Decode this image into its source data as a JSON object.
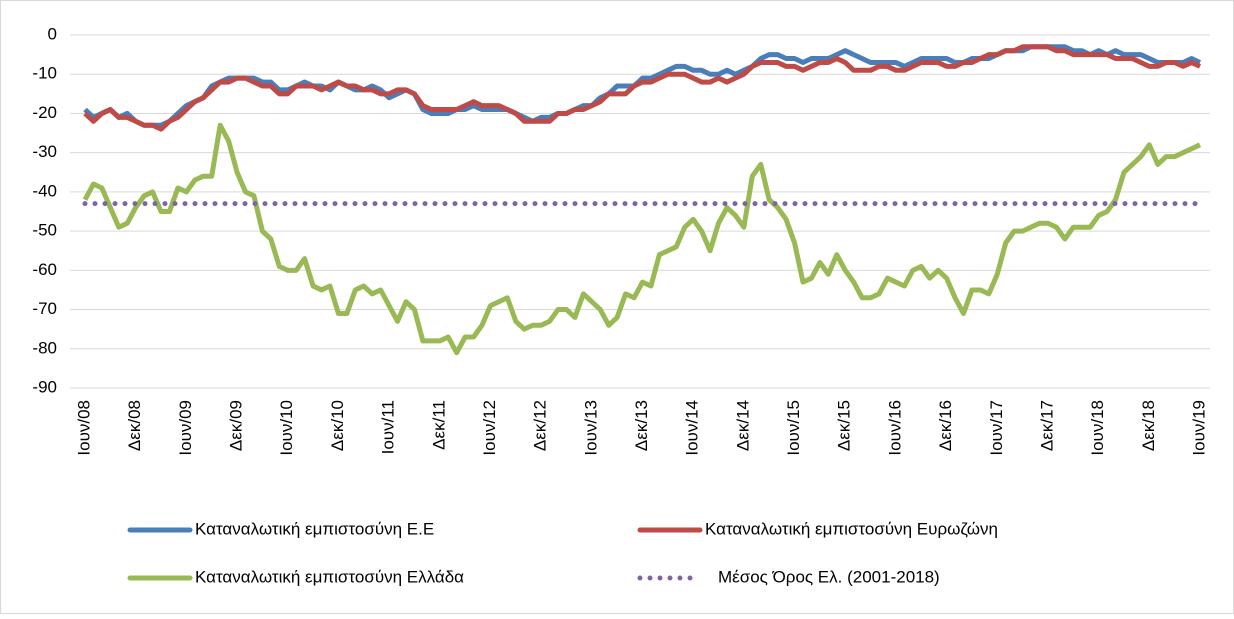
{
  "chart_data": {
    "type": "line",
    "categories": [
      "Ιουν/08",
      null,
      null,
      null,
      null,
      null,
      "Δεκ/08",
      null,
      null,
      null,
      null,
      null,
      "Ιουν/09",
      null,
      null,
      null,
      null,
      null,
      "Δεκ/09",
      null,
      null,
      null,
      null,
      null,
      "Ιουν/10",
      null,
      null,
      null,
      null,
      null,
      "Δεκ/10",
      null,
      null,
      null,
      null,
      null,
      "Ιουν/11",
      null,
      null,
      null,
      null,
      null,
      "Δεκ/11",
      null,
      null,
      null,
      null,
      null,
      "Ιουν/12",
      null,
      null,
      null,
      null,
      null,
      "Δεκ/12",
      null,
      null,
      null,
      null,
      null,
      "Ιουν/13",
      null,
      null,
      null,
      null,
      null,
      "Δεκ/13",
      null,
      null,
      null,
      null,
      null,
      "Ιουν/14",
      null,
      null,
      null,
      null,
      null,
      "Δεκ/14",
      null,
      null,
      null,
      null,
      null,
      "Ιουν/15",
      null,
      null,
      null,
      null,
      null,
      "Δεκ/15",
      null,
      null,
      null,
      null,
      null,
      "Ιουν/16",
      null,
      null,
      null,
      null,
      null,
      "Δεκ/16",
      null,
      null,
      null,
      null,
      null,
      "Ιουν/17",
      null,
      null,
      null,
      null,
      null,
      "Δεκ/17",
      null,
      null,
      null,
      null,
      null,
      "Ιουν/18",
      null,
      null,
      null,
      null,
      null,
      "Δεκ/18",
      null,
      null,
      null,
      null,
      null,
      "Ιουν/19"
    ],
    "series": [
      {
        "name": "Καταναλωτική εμπιστοσύνη Ε.Ε",
        "color": "#4a7ebb",
        "values": [
          -19,
          -21,
          -20,
          -19,
          -21,
          -20,
          -22,
          -23,
          -23,
          -23,
          -22,
          -20,
          -18,
          -17,
          -16,
          -13,
          -12,
          -11,
          -11,
          -11,
          -11,
          -12,
          -12,
          -14,
          -14,
          -13,
          -12,
          -13,
          -13,
          -14,
          -12,
          -13,
          -14,
          -14,
          -13,
          -14,
          -16,
          -15,
          -14,
          -15,
          -19,
          -20,
          -20,
          -20,
          -19,
          -19,
          -18,
          -19,
          -19,
          -19,
          -19,
          -20,
          -21,
          -22,
          -21,
          -21,
          -20,
          -20,
          -19,
          -18,
          -18,
          -16,
          -15,
          -13,
          -13,
          -13,
          -11,
          -11,
          -10,
          -9,
          -8,
          -8,
          -9,
          -9,
          -10,
          -10,
          -9,
          -10,
          -9,
          -8,
          -6,
          -5,
          -5,
          -6,
          -6,
          -7,
          -6,
          -6,
          -6,
          -5,
          -4,
          -5,
          -6,
          -7,
          -7,
          -7,
          -7,
          -8,
          -7,
          -6,
          -6,
          -6,
          -6,
          -7,
          -7,
          -6,
          -6,
          -6,
          -5,
          -4,
          -4,
          -4,
          -3,
          -3,
          -3,
          -3,
          -3,
          -4,
          -4,
          -5,
          -4,
          -5,
          -4,
          -5,
          -5,
          -5,
          -6,
          -7,
          -7,
          -7,
          -7,
          -6,
          -7
        ]
      },
      {
        "name": "Καταναλωτική εμπιστοσύνη Ευρωζώνη",
        "color": "#be4b48",
        "values": [
          -20,
          -22,
          -20,
          -19,
          -21,
          -21,
          -22,
          -23,
          -23,
          -24,
          -22,
          -21,
          -19,
          -17,
          -16,
          -14,
          -12,
          -12,
          -11,
          -11,
          -12,
          -13,
          -13,
          -15,
          -15,
          -13,
          -13,
          -13,
          -14,
          -13,
          -12,
          -13,
          -13,
          -14,
          -14,
          -15,
          -15,
          -14,
          -14,
          -15,
          -18,
          -19,
          -19,
          -19,
          -19,
          -18,
          -17,
          -18,
          -18,
          -18,
          -19,
          -20,
          -22,
          -22,
          -22,
          -22,
          -20,
          -20,
          -19,
          -19,
          -18,
          -17,
          -15,
          -15,
          -15,
          -13,
          -12,
          -12,
          -11,
          -10,
          -10,
          -10,
          -11,
          -12,
          -12,
          -11,
          -12,
          -11,
          -10,
          -8,
          -7,
          -7,
          -7,
          -8,
          -8,
          -9,
          -8,
          -7,
          -7,
          -6,
          -7,
          -9,
          -9,
          -9,
          -8,
          -8,
          -9,
          -9,
          -8,
          -7,
          -7,
          -7,
          -8,
          -8,
          -7,
          -7,
          -6,
          -5,
          -5,
          -4,
          -4,
          -3,
          -3,
          -3,
          -3,
          -4,
          -4,
          -5,
          -5,
          -5,
          -5,
          -5,
          -6,
          -6,
          -6,
          -7,
          -8,
          -8,
          -7,
          -7,
          -8,
          -7,
          -8
        ]
      },
      {
        "name": "Καταναλωτική εμπιστοσύνη Ελλάδα",
        "color": "#98b954",
        "values": [
          -42,
          -38,
          -39,
          -44,
          -49,
          -48,
          -44,
          -41,
          -40,
          -45,
          -45,
          -39,
          -40,
          -37,
          -36,
          -36,
          -23,
          -27,
          -35,
          -40,
          -41,
          -50,
          -52,
          -59,
          -60,
          -60,
          -57,
          -64,
          -65,
          -64,
          -71,
          -71,
          -65,
          -64,
          -66,
          -65,
          -69,
          -73,
          -68,
          -70,
          -78,
          -78,
          -78,
          -77,
          -81,
          -77,
          -77,
          -74,
          -69,
          -68,
          -67,
          -73,
          -75,
          -74,
          -74,
          -73,
          -70,
          -70,
          -72,
          -66,
          -68,
          -70,
          -74,
          -72,
          -66,
          -67,
          -63,
          -64,
          -56,
          -55,
          -54,
          -49,
          -47,
          -50,
          -55,
          -48,
          -44,
          -46,
          -49,
          -36,
          -33,
          -42,
          -44,
          -47,
          -53,
          -63,
          -62,
          -58,
          -61,
          -56,
          -60,
          -63,
          -67,
          -67,
          -66,
          -62,
          -63,
          -64,
          -60,
          -59,
          -62,
          -60,
          -62,
          -67,
          -71,
          -65,
          -65,
          -66,
          -61,
          -53,
          -50,
          -50,
          -49,
          -48,
          -48,
          -49,
          -52,
          -49,
          -49,
          -49,
          -46,
          -45,
          -42,
          -35,
          -33,
          -31,
          -28,
          -33,
          -31,
          -31,
          -30,
          -29,
          -28
        ]
      },
      {
        "name": "Μέσος Όρος Ελ. (2001-2018)",
        "color": "#8064a2",
        "value": -43,
        "style": "dotted"
      }
    ],
    "ylim": [
      -90,
      0
    ],
    "yticks": [
      -90,
      -80,
      -70,
      -60,
      -50,
      -40,
      -30,
      -20,
      -10,
      0
    ],
    "grid": true,
    "legend": "bottom"
  }
}
